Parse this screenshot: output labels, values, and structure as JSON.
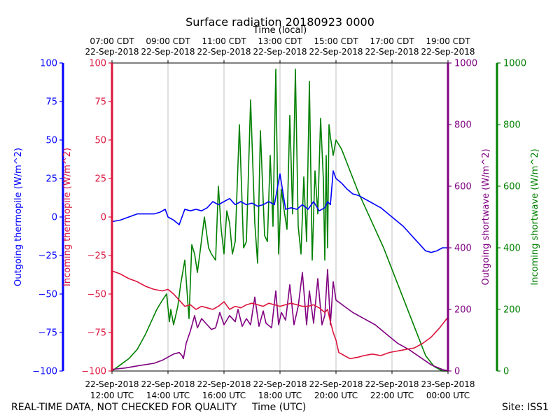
{
  "chart_data": {
    "type": "line",
    "title": "Surface radiation 20180923 0000",
    "xlabel_bottom": "Time (UTC)",
    "xlabel_top": "Time (local)",
    "x_range_hours_utc": [
      12.0,
      24.0
    ],
    "bottom_ticks": [
      {
        "x": 12,
        "date": "22-Sep-2018",
        "time": "12:00 UTC"
      },
      {
        "x": 14,
        "date": "22-Sep-2018",
        "time": "14:00 UTC"
      },
      {
        "x": 16,
        "date": "22-Sep-2018",
        "time": "16:00 UTC"
      },
      {
        "x": 18,
        "date": "22-Sep-2018",
        "time": "18:00 UTC"
      },
      {
        "x": 20,
        "date": "22-Sep-2018",
        "time": "20:00 UTC"
      },
      {
        "x": 22,
        "date": "22-Sep-2018",
        "time": "22:00 UTC"
      },
      {
        "x": 24,
        "date": "23-Sep-2018",
        "time": "00:00 UTC"
      }
    ],
    "top_ticks": [
      {
        "x": 12,
        "time": "07:00 CDT",
        "date": "22-Sep-2018"
      },
      {
        "x": 14,
        "time": "09:00 CDT",
        "date": "22-Sep-2018"
      },
      {
        "x": 16,
        "time": "11:00 CDT",
        "date": "22-Sep-2018"
      },
      {
        "x": 18,
        "time": "13:00 CDT",
        "date": "22-Sep-2018"
      },
      {
        "x": 20,
        "time": "15:00 CDT",
        "date": "22-Sep-2018"
      },
      {
        "x": 22,
        "time": "17:00 CDT",
        "date": "22-Sep-2018"
      },
      {
        "x": 24,
        "time": "19:00 CDT",
        "date": "22-Sep-2018"
      }
    ],
    "axes": [
      {
        "id": "out_thermo",
        "label": "Outgoing thermopile (W/m^2)",
        "color": "#0000ff",
        "ylim": [
          -100,
          100
        ],
        "ticks": [
          -100,
          -75,
          -50,
          -25,
          0,
          25,
          50,
          75,
          100
        ],
        "tick_labels": [
          "−100",
          "−75",
          "−50",
          "−25",
          "0",
          "25",
          "50",
          "75",
          "100"
        ]
      },
      {
        "id": "in_thermo",
        "label": "Incoming thermopile (W/m^2)",
        "color": "#dc143c",
        "ylim": [
          -100,
          100
        ],
        "ticks": [
          -100,
          -75,
          -50,
          -25,
          0,
          25,
          50,
          75,
          100
        ],
        "tick_labels": [
          "−100",
          "−75",
          "−50",
          "−25",
          "0",
          "25",
          "50",
          "75",
          "100"
        ]
      },
      {
        "id": "out_sw",
        "label": "Outgoing shortwave (W/m^2)",
        "color": "#800080",
        "ylim": [
          0,
          1000
        ],
        "ticks": [
          0,
          200,
          400,
          600,
          800,
          1000
        ],
        "tick_labels": [
          "0",
          "200",
          "400",
          "600",
          "800",
          "1000"
        ]
      },
      {
        "id": "in_sw",
        "label": "Incoming shortwave (W/m^2)",
        "color": "#008000",
        "ylim": [
          0,
          1000
        ],
        "ticks": [
          0,
          200,
          400,
          600,
          800,
          1000
        ],
        "tick_labels": [
          "0",
          "200",
          "400",
          "600",
          "800",
          "1000"
        ]
      }
    ],
    "series": [
      {
        "name": "Incoming shortwave",
        "axis": "in_sw",
        "color": "#008000",
        "x": [
          12.0,
          12.3,
          12.6,
          12.9,
          13.2,
          13.4,
          13.6,
          13.8,
          13.95,
          14.05,
          14.1,
          14.2,
          14.35,
          14.45,
          14.6,
          14.75,
          14.85,
          14.95,
          15.05,
          15.15,
          15.3,
          15.45,
          15.55,
          15.7,
          15.8,
          15.9,
          16.0,
          16.1,
          16.2,
          16.3,
          16.4,
          16.55,
          16.7,
          16.8,
          16.95,
          17.1,
          17.2,
          17.3,
          17.45,
          17.55,
          17.65,
          17.75,
          17.85,
          17.95,
          18.05,
          18.15,
          18.25,
          18.35,
          18.45,
          18.55,
          18.65,
          18.75,
          18.85,
          18.95,
          19.05,
          19.15,
          19.25,
          19.35,
          19.45,
          19.55,
          19.6,
          19.65,
          19.7,
          19.75,
          19.8,
          19.9,
          20.0,
          20.2,
          20.5,
          20.8,
          21.1,
          21.4,
          21.7,
          22.0,
          22.3,
          22.6,
          22.9,
          23.2,
          23.5,
          23.8,
          24.0
        ],
        "y": [
          0,
          20,
          40,
          70,
          120,
          160,
          200,
          230,
          250,
          160,
          200,
          150,
          210,
          280,
          360,
          170,
          410,
          380,
          320,
          390,
          500,
          400,
          380,
          360,
          600,
          460,
          380,
          520,
          480,
          380,
          420,
          800,
          400,
          420,
          880,
          480,
          350,
          780,
          440,
          420,
          700,
          470,
          980,
          380,
          590,
          520,
          460,
          830,
          510,
          980,
          470,
          380,
          630,
          420,
          940,
          360,
          650,
          510,
          820,
          620,
          360,
          700,
          400,
          800,
          760,
          700,
          750,
          720,
          650,
          580,
          520,
          460,
          400,
          330,
          260,
          190,
          120,
          50,
          15,
          0,
          0
        ]
      },
      {
        "name": "Outgoing shortwave",
        "axis": "out_sw",
        "color": "#800080",
        "x": [
          12.0,
          12.5,
          13.0,
          13.5,
          13.8,
          14.0,
          14.2,
          14.4,
          14.5,
          14.55,
          14.65,
          14.8,
          14.95,
          15.05,
          15.2,
          15.4,
          15.55,
          15.7,
          15.85,
          16.0,
          16.2,
          16.4,
          16.5,
          16.65,
          16.8,
          16.95,
          17.1,
          17.25,
          17.4,
          17.5,
          17.7,
          17.85,
          17.95,
          18.05,
          18.2,
          18.35,
          18.5,
          18.65,
          18.8,
          18.95,
          19.05,
          19.2,
          19.35,
          19.5,
          19.6,
          19.7,
          19.8,
          19.9,
          20.0,
          20.3,
          20.6,
          21.0,
          21.4,
          21.8,
          22.2,
          22.6,
          23.0,
          23.4,
          23.8,
          24.0
        ],
        "y": [
          5,
          10,
          18,
          25,
          35,
          45,
          55,
          60,
          50,
          40,
          90,
          130,
          180,
          140,
          170,
          150,
          135,
          140,
          190,
          150,
          180,
          160,
          200,
          145,
          170,
          150,
          240,
          145,
          195,
          155,
          140,
          260,
          150,
          190,
          165,
          280,
          150,
          210,
          320,
          150,
          260,
          155,
          300,
          150,
          180,
          330,
          150,
          290,
          230,
          210,
          190,
          170,
          150,
          120,
          90,
          70,
          45,
          20,
          5,
          0
        ]
      },
      {
        "name": "Outgoing thermopile",
        "axis": "out_thermo",
        "color": "#0000ff",
        "x": [
          12.0,
          12.3,
          12.6,
          12.9,
          13.2,
          13.5,
          13.7,
          13.9,
          14.0,
          14.2,
          14.4,
          14.6,
          14.8,
          15.0,
          15.2,
          15.4,
          15.6,
          15.8,
          16.0,
          16.2,
          16.4,
          16.6,
          16.8,
          17.0,
          17.2,
          17.4,
          17.6,
          17.8,
          18.0,
          18.2,
          18.4,
          18.6,
          18.8,
          19.0,
          19.2,
          19.4,
          19.6,
          19.7,
          19.8,
          19.9,
          20.0,
          20.2,
          20.4,
          20.6,
          20.8,
          21.0,
          21.2,
          21.4,
          21.6,
          21.8,
          22.0,
          22.2,
          22.4,
          22.6,
          22.8,
          23.0,
          23.2,
          23.4,
          23.6,
          23.8,
          24.0
        ],
        "y": [
          -3,
          -2,
          0,
          2,
          2,
          2,
          3,
          5,
          0,
          -2,
          -5,
          5,
          4,
          5,
          4,
          6,
          10,
          8,
          10,
          12,
          8,
          10,
          8,
          9,
          7,
          8,
          10,
          8,
          28,
          5,
          6,
          5,
          8,
          5,
          10,
          4,
          6,
          10,
          8,
          30,
          25,
          22,
          18,
          15,
          14,
          12,
          10,
          8,
          6,
          3,
          0,
          -3,
          -6,
          -10,
          -14,
          -18,
          -22,
          -23,
          -22,
          -20,
          -20
        ]
      },
      {
        "name": "Incoming thermopile",
        "axis": "in_thermo",
        "color": "#dc143c",
        "x": [
          12.0,
          12.3,
          12.6,
          12.9,
          13.2,
          13.5,
          13.8,
          14.0,
          14.2,
          14.4,
          14.6,
          14.8,
          15.0,
          15.2,
          15.4,
          15.6,
          15.8,
          16.0,
          16.2,
          16.4,
          16.6,
          16.8,
          17.0,
          17.2,
          17.4,
          17.6,
          17.8,
          18.0,
          18.2,
          18.4,
          18.6,
          18.8,
          19.0,
          19.2,
          19.4,
          19.6,
          19.7,
          19.8,
          19.9,
          20.0,
          20.1,
          20.3,
          20.5,
          20.8,
          21.0,
          21.3,
          21.6,
          21.9,
          22.2,
          22.5,
          22.8,
          23.1,
          23.4,
          23.7,
          24.0
        ],
        "y": [
          -35,
          -37,
          -40,
          -42,
          -45,
          -47,
          -48,
          -47,
          -50,
          -54,
          -58,
          -57,
          -60,
          -58,
          -59,
          -60,
          -58,
          -55,
          -60,
          -58,
          -59,
          -57,
          -56,
          -57,
          -58,
          -56,
          -57,
          -58,
          -57,
          -56,
          -57,
          -58,
          -58,
          -57,
          -59,
          -62,
          -60,
          -68,
          -75,
          -80,
          -88,
          -90,
          -92,
          -91,
          -90,
          -89,
          -90,
          -88,
          -87,
          -86,
          -85,
          -82,
          -78,
          -72,
          -65
        ]
      }
    ]
  },
  "footer": {
    "left": "REAL-TIME DATA, NOT CHECKED FOR QUALITY",
    "center": "Time (UTC)",
    "right": "Site: ISS1"
  }
}
